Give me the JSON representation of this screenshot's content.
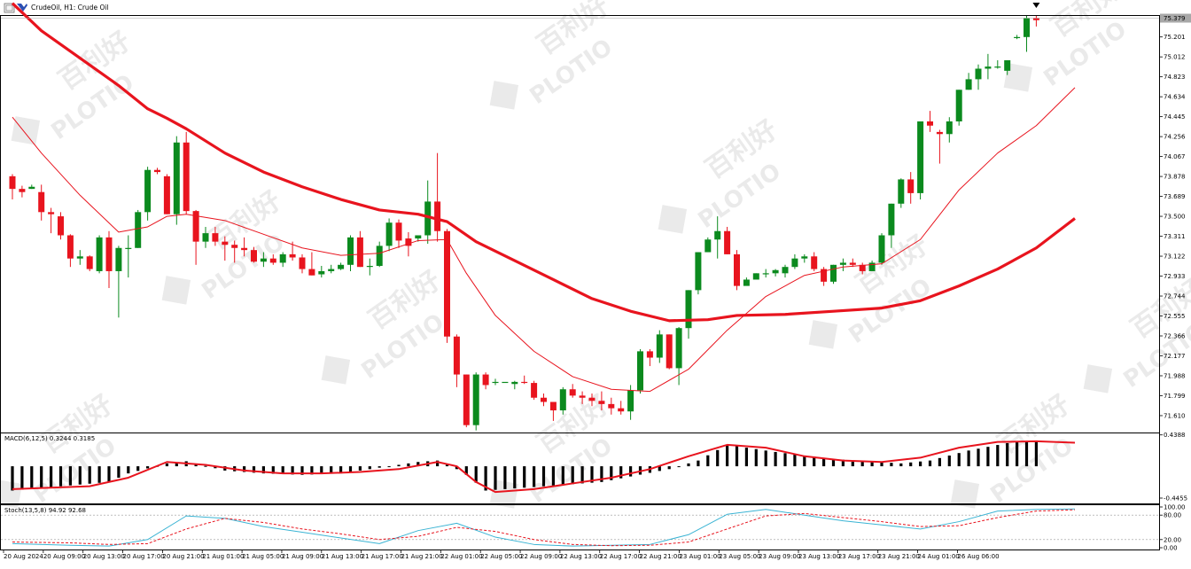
{
  "window_title": "CrudeOil, H1:  Crude Oil",
  "watermark": {
    "text": "PLOTIO",
    "cn": "百利好"
  },
  "colors": {
    "bull": "#0b8a1e",
    "bear": "#e8141e",
    "ma_slow": "#e8141e",
    "ma_fast": "#e8141e",
    "macd_hist": "#000000",
    "macd_signal": "#e8141e",
    "stoch_main": "#3bb4d4",
    "stoch_signal": "#e8141e",
    "last_price_bg": "#a8a8a8"
  },
  "chart_data": [
    {
      "type": "candlestick",
      "symbol": "CrudeOil",
      "timeframe": "H1",
      "description": "Crude Oil",
      "last_price": "75.379",
      "ylim": [
        71.45,
        75.4
      ],
      "y_ticks": [
        "75.201",
        "75.012",
        "74.823",
        "74.634",
        "74.445",
        "74.256",
        "74.067",
        "73.878",
        "73.689",
        "73.500",
        "73.311",
        "73.122",
        "72.933",
        "72.744",
        "72.555",
        "72.366",
        "72.177",
        "71.988",
        "71.799",
        "71.610"
      ],
      "x_labels": [
        "20 Aug 2024",
        "20 Aug 09:00",
        "20 Aug 13:00",
        "20 Aug 17:00",
        "20 Aug 21:00",
        "21 Aug 01:00",
        "21 Aug 05:00",
        "21 Aug 09:00",
        "21 Aug 13:00",
        "21 Aug 17:00",
        "21 Aug 21:00",
        "22 Aug 01:00",
        "22 Aug 05:00",
        "22 Aug 09:00",
        "22 Aug 13:00",
        "22 Aug 17:00",
        "22 Aug 21:00",
        "23 Aug 01:00",
        "23 Aug 05:00",
        "23 Aug 09:00",
        "23 Aug 13:00",
        "23 Aug 17:00",
        "23 Aug 21:00",
        "24 Aug 01:00",
        "26 Aug 06:00"
      ],
      "candles": [
        [
          73.88,
          73.9,
          73.66,
          73.76
        ],
        [
          73.76,
          73.79,
          73.68,
          73.73
        ],
        [
          73.76,
          73.8,
          73.76,
          73.78
        ],
        [
          73.73,
          73.8,
          73.46,
          73.54
        ],
        [
          73.54,
          73.58,
          73.34,
          73.52
        ],
        [
          73.5,
          73.54,
          73.28,
          73.32
        ],
        [
          73.32,
          73.33,
          73.02,
          73.1
        ],
        [
          73.1,
          73.18,
          73.04,
          73.12
        ],
        [
          73.12,
          73.13,
          72.98,
          73.0
        ],
        [
          72.98,
          73.32,
          72.96,
          73.3
        ],
        [
          73.3,
          73.36,
          72.82,
          72.98
        ],
        [
          72.98,
          73.22,
          72.54,
          73.2
        ],
        [
          73.2,
          73.32,
          72.92,
          73.2
        ],
        [
          73.2,
          73.56,
          73.2,
          73.54
        ],
        [
          73.54,
          73.97,
          73.46,
          73.94
        ],
        [
          73.94,
          73.96,
          73.9,
          73.92
        ],
        [
          73.88,
          73.9,
          73.52,
          73.52
        ],
        [
          73.52,
          74.26,
          73.42,
          74.2
        ],
        [
          74.2,
          74.3,
          73.52,
          73.55
        ],
        [
          73.55,
          73.56,
          73.04,
          73.26
        ],
        [
          73.26,
          73.4,
          73.2,
          73.34
        ],
        [
          73.34,
          73.4,
          73.22,
          73.26
        ],
        [
          73.26,
          73.31,
          73.08,
          73.23
        ],
        [
          73.23,
          73.27,
          73.06,
          73.2
        ],
        [
          73.2,
          73.3,
          73.12,
          73.18
        ],
        [
          73.18,
          73.21,
          73.06,
          73.07
        ],
        [
          73.07,
          73.16,
          73.02,
          73.1
        ],
        [
          73.1,
          73.14,
          73.04,
          73.06
        ],
        [
          73.06,
          73.16,
          73.02,
          73.14
        ],
        [
          73.14,
          73.26,
          73.08,
          73.11
        ],
        [
          73.11,
          73.14,
          72.96,
          73.0
        ],
        [
          73.0,
          73.16,
          72.94,
          72.94
        ],
        [
          72.95,
          73.03,
          72.92,
          72.98
        ],
        [
          72.98,
          73.04,
          72.96,
          73.0
        ],
        [
          73.0,
          73.06,
          72.99,
          73.04
        ],
        [
          73.04,
          73.32,
          72.98,
          73.3
        ],
        [
          73.3,
          73.36,
          73.02,
          73.02
        ],
        [
          73.02,
          73.1,
          72.94,
          73.03
        ],
        [
          73.03,
          73.26,
          73.02,
          73.22
        ],
        [
          73.22,
          73.48,
          73.17,
          73.44
        ],
        [
          73.44,
          73.47,
          73.2,
          73.27
        ],
        [
          73.29,
          73.35,
          73.12,
          73.22
        ],
        [
          73.29,
          73.32,
          73.26,
          73.32
        ],
        [
          73.32,
          73.84,
          73.24,
          73.64
        ],
        [
          73.64,
          74.1,
          73.26,
          73.36
        ],
        [
          73.36,
          73.38,
          72.3,
          72.36
        ],
        [
          72.36,
          72.38,
          71.88,
          72.0
        ],
        [
          72.0,
          72.0,
          71.5,
          71.52
        ],
        [
          71.52,
          72.02,
          71.47,
          72.0
        ],
        [
          72.0,
          72.02,
          71.86,
          71.9
        ],
        [
          71.92,
          71.96,
          71.9,
          71.93
        ],
        [
          71.93,
          71.93,
          71.93,
          71.93
        ],
        [
          71.91,
          71.94,
          71.86,
          71.93
        ],
        [
          71.93,
          71.99,
          71.91,
          71.92
        ],
        [
          71.92,
          71.94,
          71.76,
          71.78
        ],
        [
          71.78,
          71.82,
          71.7,
          71.74
        ],
        [
          71.74,
          71.74,
          71.56,
          71.66
        ],
        [
          71.66,
          71.88,
          71.62,
          71.86
        ],
        [
          71.86,
          71.91,
          71.78,
          71.8
        ],
        [
          71.8,
          71.84,
          71.72,
          71.78
        ],
        [
          71.78,
          71.82,
          71.7,
          71.75
        ],
        [
          71.75,
          71.84,
          71.66,
          71.72
        ],
        [
          71.72,
          71.78,
          71.62,
          71.68
        ],
        [
          71.68,
          71.75,
          71.62,
          71.65
        ],
        [
          71.65,
          71.9,
          71.57,
          71.85
        ],
        [
          71.85,
          72.24,
          71.82,
          72.22
        ],
        [
          72.22,
          72.24,
          72.08,
          72.16
        ],
        [
          72.16,
          72.42,
          72.11,
          72.38
        ],
        [
          72.38,
          72.38,
          72.05,
          72.06
        ],
        [
          72.06,
          72.45,
          71.9,
          72.44
        ],
        [
          72.44,
          72.8,
          72.34,
          72.8
        ],
        [
          72.8,
          73.16,
          72.76,
          73.16
        ],
        [
          73.16,
          73.3,
          73.16,
          73.28
        ],
        [
          73.28,
          73.5,
          73.1,
          73.36
        ],
        [
          73.36,
          73.4,
          73.14,
          73.14
        ],
        [
          73.14,
          73.18,
          72.8,
          72.84
        ],
        [
          72.84,
          72.92,
          72.86,
          72.9
        ],
        [
          72.9,
          72.96,
          72.92,
          72.96
        ],
        [
          72.96,
          73.0,
          72.92,
          72.96
        ],
        [
          72.96,
          73.0,
          72.93,
          72.99
        ],
        [
          72.96,
          73.04,
          72.92,
          73.02
        ],
        [
          73.02,
          73.14,
          73.0,
          73.1
        ],
        [
          73.1,
          73.14,
          73.06,
          73.12
        ],
        [
          73.12,
          73.16,
          72.98,
          73.0
        ],
        [
          73.0,
          73.02,
          72.84,
          72.88
        ],
        [
          72.88,
          73.04,
          72.86,
          73.04
        ],
        [
          73.04,
          73.1,
          72.98,
          73.06
        ],
        [
          73.06,
          73.1,
          73.02,
          73.04
        ],
        [
          73.04,
          73.06,
          72.95,
          72.98
        ],
        [
          72.98,
          73.08,
          72.98,
          73.06
        ],
        [
          73.06,
          73.34,
          73.04,
          73.32
        ],
        [
          73.32,
          73.62,
          73.2,
          73.62
        ],
        [
          73.62,
          73.86,
          73.58,
          73.85
        ],
        [
          73.85,
          73.92,
          73.62,
          73.72
        ],
        [
          73.72,
          74.4,
          73.66,
          74.4
        ],
        [
          74.4,
          74.5,
          74.3,
          74.36
        ],
        [
          74.3,
          74.32,
          74.0,
          74.28
        ],
        [
          74.28,
          74.44,
          74.2,
          74.4
        ],
        [
          74.4,
          74.7,
          74.36,
          74.7
        ],
        [
          74.7,
          74.86,
          74.7,
          74.8
        ],
        [
          74.8,
          74.94,
          74.7,
          74.9
        ],
        [
          74.9,
          75.04,
          74.8,
          74.92
        ],
        [
          74.92,
          74.98,
          74.9,
          74.92
        ],
        [
          74.88,
          74.98,
          74.84,
          74.98
        ],
        [
          75.2,
          75.22,
          75.18,
          75.2
        ],
        [
          75.2,
          75.4,
          75.06,
          75.38
        ],
        [
          75.38,
          75.4,
          75.3,
          75.36
        ]
      ],
      "series": [
        {
          "name": "MA slow",
          "x": [
            0,
            3,
            7,
            11,
            14,
            16,
            18,
            22,
            26,
            30,
            34,
            38,
            42,
            45,
            48,
            52,
            56,
            60,
            64,
            68,
            72,
            75,
            80,
            85,
            90,
            94,
            98,
            102,
            106,
            110
          ],
          "y": [
            75.52,
            75.26,
            75.0,
            74.74,
            74.52,
            74.43,
            74.33,
            74.1,
            73.92,
            73.78,
            73.66,
            73.56,
            73.52,
            73.45,
            73.26,
            73.08,
            72.9,
            72.72,
            72.6,
            72.51,
            72.52,
            72.56,
            72.57,
            72.6,
            72.63,
            72.7,
            72.84,
            73.0,
            73.2,
            73.48
          ]
        },
        {
          "name": "MA fast",
          "x": [
            0,
            3,
            7,
            11,
            14,
            16,
            18,
            22,
            26,
            30,
            34,
            38,
            42,
            45,
            47,
            50,
            54,
            58,
            62,
            66,
            70,
            74,
            78,
            82,
            86,
            90,
            94,
            98,
            102,
            106,
            110
          ],
          "y": [
            74.44,
            74.1,
            73.7,
            73.35,
            73.4,
            73.5,
            73.52,
            73.46,
            73.33,
            73.2,
            73.13,
            73.15,
            73.27,
            73.28,
            72.96,
            72.56,
            72.22,
            71.98,
            71.86,
            71.84,
            72.05,
            72.42,
            72.74,
            72.94,
            73.02,
            73.05,
            73.28,
            73.75,
            74.1,
            74.36,
            74.72
          ]
        }
      ]
    },
    {
      "type": "bar",
      "indicator": "MACD(6,12,5)",
      "values_text": "0.3244 0.3185",
      "ylim": [
        -0.52,
        0.46
      ],
      "y_ticks": [
        "0.4388",
        "-0.4455"
      ],
      "histogram_x": [
        0,
        10,
        12,
        16,
        18,
        22,
        26,
        30,
        34,
        38,
        42,
        44,
        46,
        47,
        49,
        55,
        61,
        68,
        71,
        74,
        79,
        85,
        92,
        95,
        99,
        104,
        110
      ],
      "histogram_y": [
        -0.34,
        -0.22,
        -0.1,
        0.04,
        0.07,
        -0.06,
        -0.1,
        -0.12,
        -0.1,
        -0.02,
        0.06,
        0.08,
        -0.04,
        -0.12,
        -0.34,
        -0.28,
        -0.22,
        -0.04,
        0.08,
        0.3,
        0.2,
        0.1,
        0.04,
        0.08,
        0.22,
        0.35,
        0.33
      ],
      "series": [
        {
          "name": "MACD signal",
          "x": [
            0,
            8,
            12,
            16,
            20,
            24,
            28,
            32,
            36,
            40,
            44,
            46,
            48,
            50,
            54,
            58,
            62,
            66,
            70,
            74,
            78,
            82,
            86,
            90,
            94,
            98,
            102,
            106,
            110
          ],
          "y": [
            -0.32,
            -0.28,
            -0.16,
            0.06,
            0.02,
            -0.06,
            -0.1,
            -0.1,
            -0.08,
            -0.04,
            0.06,
            0.0,
            -0.22,
            -0.36,
            -0.32,
            -0.24,
            -0.16,
            -0.04,
            0.14,
            0.3,
            0.26,
            0.14,
            0.08,
            0.06,
            0.12,
            0.26,
            0.34,
            0.35,
            0.33
          ]
        }
      ]
    },
    {
      "type": "line",
      "indicator": "Stoch(13,5,8)",
      "values_text": "94.92 92.68",
      "ylim": [
        0,
        100
      ],
      "y_ticks": [
        "100.00",
        "80.00",
        "20.00",
        "0.00"
      ],
      "levels": [
        80,
        20
      ],
      "series": [
        {
          "name": "Stoch main",
          "x": [
            0,
            6,
            10,
            14,
            18,
            22,
            26,
            30,
            34,
            38,
            42,
            46,
            50,
            54,
            58,
            62,
            66,
            70,
            74,
            78,
            82,
            86,
            90,
            94,
            98,
            102,
            106,
            110
          ],
          "y": [
            10,
            6,
            4,
            20,
            78,
            72,
            52,
            38,
            24,
            10,
            42,
            60,
            26,
            8,
            4,
            6,
            8,
            32,
            82,
            94,
            80,
            66,
            56,
            46,
            64,
            90,
            94,
            95
          ]
        },
        {
          "name": "Stoch signal",
          "x": [
            0,
            6,
            10,
            14,
            18,
            22,
            26,
            30,
            34,
            38,
            42,
            46,
            50,
            54,
            58,
            62,
            66,
            70,
            74,
            78,
            82,
            86,
            90,
            94,
            98,
            102,
            106,
            110
          ],
          "y": [
            14,
            12,
            8,
            10,
            46,
            72,
            62,
            46,
            34,
            20,
            28,
            50,
            40,
            20,
            8,
            5,
            6,
            14,
            46,
            78,
            84,
            74,
            64,
            52,
            54,
            74,
            90,
            93
          ]
        }
      ]
    }
  ]
}
